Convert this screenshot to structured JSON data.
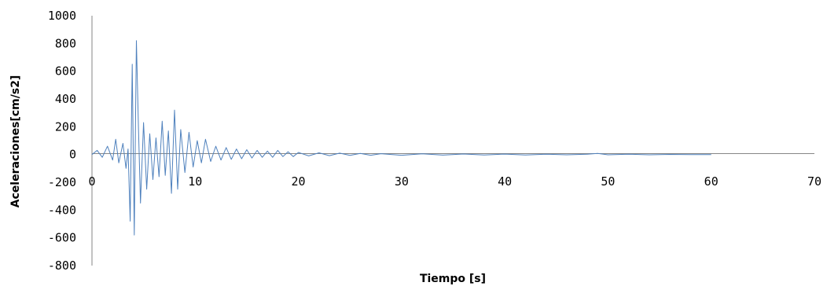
{
  "chart_data": {
    "type": "line",
    "title": "",
    "xlabel": "Tiempo [s]",
    "ylabel": "Aceleraciones[cm/s2]",
    "xlim": [
      0,
      70
    ],
    "ylim": [
      -800,
      1000
    ],
    "x_ticks": [
      "0",
      "10",
      "20",
      "30",
      "40",
      "50",
      "60",
      "70"
    ],
    "y_ticks": [
      "1000",
      "800",
      "600",
      "400",
      "200",
      "0",
      "-200",
      "-400",
      "-600",
      "-800"
    ],
    "grid": false,
    "legend": "none",
    "series": [
      {
        "color": "#4f81bd",
        "x": [
          0,
          0.5,
          1.0,
          1.5,
          2.0,
          2.3,
          2.6,
          3.0,
          3.3,
          3.5,
          3.7,
          3.9,
          4.1,
          4.3,
          4.5,
          4.7,
          5.0,
          5.3,
          5.6,
          5.9,
          6.2,
          6.5,
          6.8,
          7.1,
          7.4,
          7.7,
          8.0,
          8.3,
          8.6,
          9.0,
          9.4,
          9.8,
          10.2,
          10.6,
          11.0,
          11.5,
          12.0,
          12.5,
          13.0,
          13.5,
          14.0,
          14.5,
          15.0,
          15.5,
          16.0,
          16.5,
          17.0,
          17.5,
          18.0,
          18.5,
          19.0,
          19.5,
          20.0,
          21.0,
          22.0,
          23.0,
          24.0,
          25.0,
          26.0,
          27.0,
          28.0,
          30.0,
          32.0,
          34.0,
          36.0,
          38.0,
          40.0,
          42.0,
          44.0,
          46.0,
          48.0,
          49.0,
          50.0,
          52.0,
          54.0,
          56.0,
          58.0,
          60.0
        ],
        "values": [
          0,
          30,
          -20,
          60,
          -40,
          110,
          -60,
          80,
          -100,
          40,
          -480,
          650,
          -580,
          820,
          200,
          -350,
          230,
          -250,
          150,
          -180,
          120,
          -160,
          240,
          -150,
          170,
          -280,
          320,
          -250,
          180,
          -130,
          160,
          -90,
          100,
          -60,
          110,
          -50,
          60,
          -40,
          50,
          -35,
          40,
          -30,
          35,
          -25,
          30,
          -20,
          25,
          -20,
          30,
          -15,
          20,
          -15,
          15,
          -10,
          12,
          -8,
          10,
          -6,
          8,
          -5,
          6,
          -5,
          5,
          -4,
          4,
          -3,
          3,
          -3,
          2,
          -2,
          2,
          8,
          -2,
          2,
          -2,
          1,
          -1,
          0
        ]
      }
    ]
  }
}
